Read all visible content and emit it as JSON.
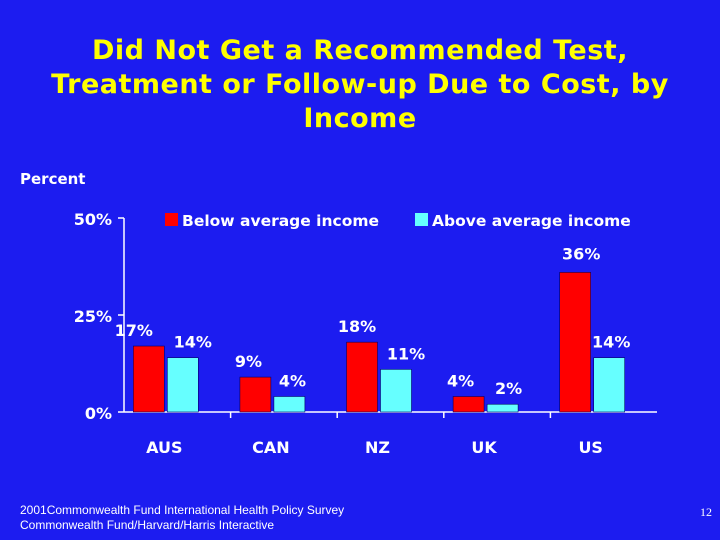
{
  "slide": {
    "title_lines": [
      "Did Not Get a Recommended Test,",
      "Treatment or Follow-up Due to Cost, by",
      "Income"
    ],
    "footer_lines": [
      "2001Commonwealth Fund International Health Policy Survey",
      "Commonwealth Fund/Harvard/Harris Interactive"
    ],
    "page_number": "12"
  },
  "colors": {
    "background": "#1c1cf0",
    "title": "#ffff00",
    "text": "#ffffff",
    "axis": "#ffffff",
    "below": "#ff0000",
    "above": "#66ffff"
  },
  "chart_data": {
    "type": "bar",
    "title": "Did Not Get a Recommended Test, Treatment or Follow-up Due to Cost, by Income",
    "xlabel": "",
    "ylabel": "Percent",
    "ylim": [
      0,
      50
    ],
    "yticks": [
      {
        "value": 0,
        "label": "0%"
      },
      {
        "value": 25,
        "label": "25%"
      },
      {
        "value": 50,
        "label": "50%"
      }
    ],
    "categories": [
      "AUS",
      "CAN",
      "NZ",
      "UK",
      "US"
    ],
    "series": [
      {
        "name": "Below average income",
        "values": [
          17,
          9,
          18,
          4,
          36
        ],
        "labels": [
          "17%",
          "9%",
          "18%",
          "4%",
          "36%"
        ]
      },
      {
        "name": "Above average income",
        "values": [
          14,
          4,
          11,
          2,
          14
        ],
        "labels": [
          "14%",
          "4%",
          "11%",
          "2%",
          "14%"
        ]
      }
    ],
    "legend_position": "top"
  }
}
